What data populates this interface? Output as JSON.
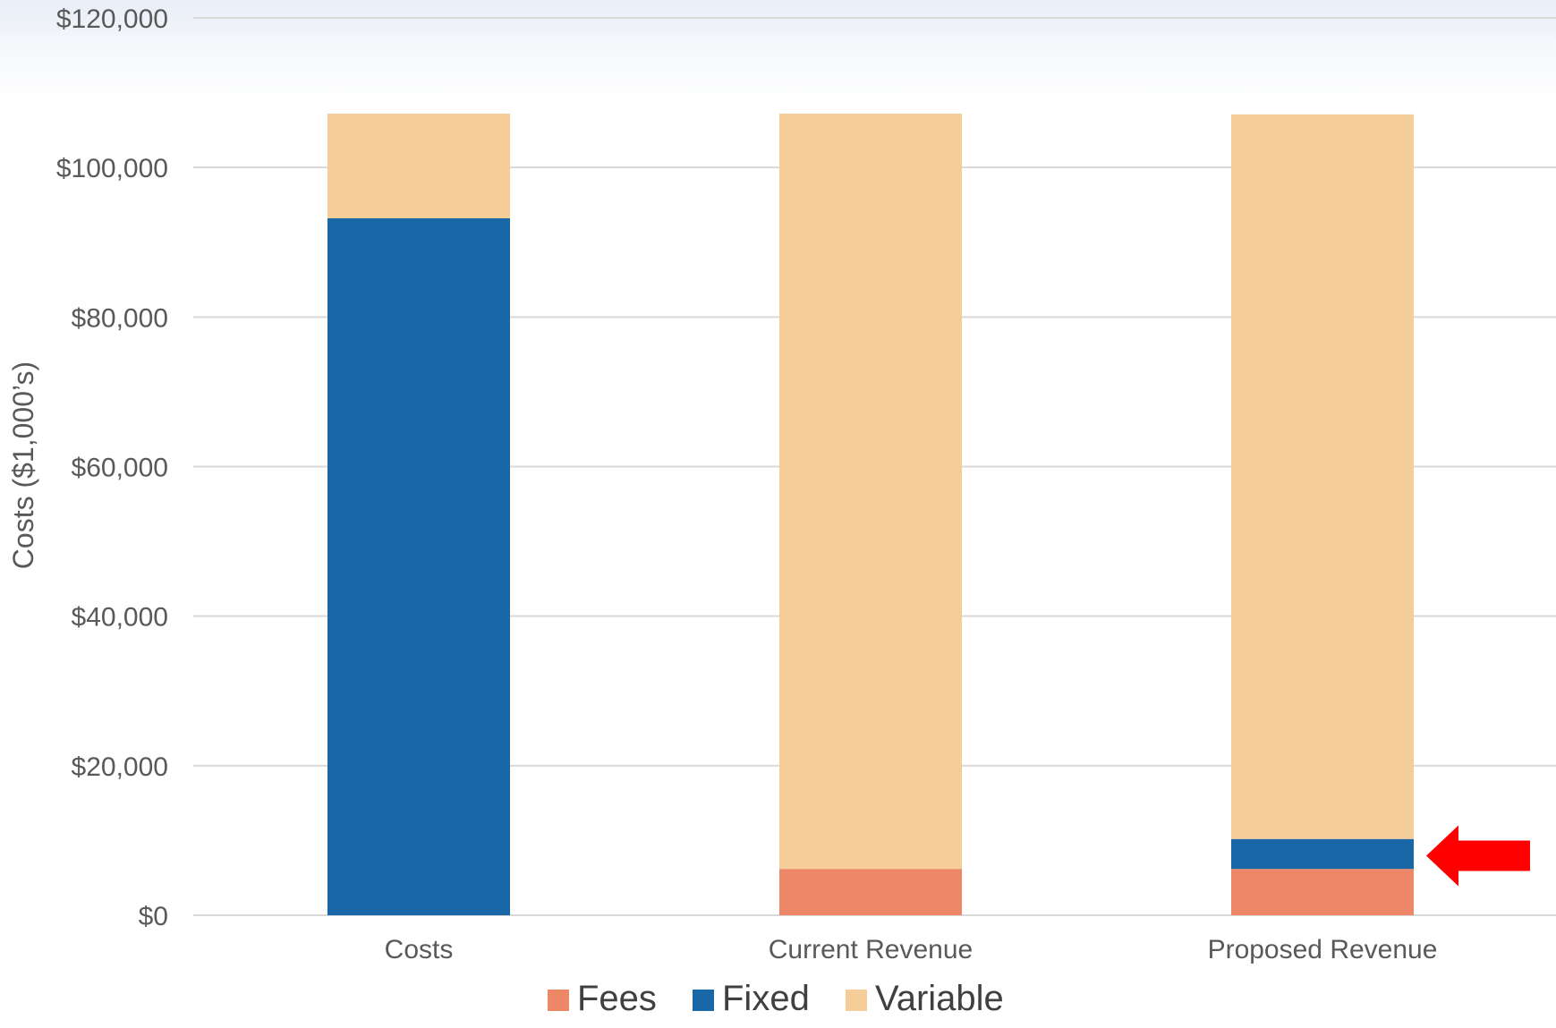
{
  "chart_data": {
    "type": "bar",
    "stacked": true,
    "title": "",
    "xlabel": "",
    "ylabel": "Costs ($1,000’s)",
    "ylim": [
      0,
      120000
    ],
    "y_ticks": [
      "$0",
      "$20,000",
      "$40,000",
      "$60,000",
      "$80,000",
      "$100,000",
      "$120,000"
    ],
    "y_tick_values": [
      0,
      20000,
      40000,
      60000,
      80000,
      100000,
      120000
    ],
    "categories": [
      "Costs",
      "Current Revenue",
      "Proposed Revenue"
    ],
    "series": [
      {
        "name": "Fees",
        "color": "#ee8767",
        "values": [
          0,
          6200,
          6200
        ]
      },
      {
        "name": "Fixed",
        "color": "#1a67a7",
        "values": [
          93200,
          0,
          4000
        ]
      },
      {
        "name": "Variable",
        "color": "#f5cd98",
        "values": [
          14000,
          101000,
          96900
        ]
      }
    ],
    "grid": true,
    "legend_position": "bottom",
    "annotation": {
      "type": "arrow",
      "color": "#ff0000",
      "direction": "left",
      "target_category": "Proposed Revenue",
      "target_series": "Fixed"
    }
  }
}
